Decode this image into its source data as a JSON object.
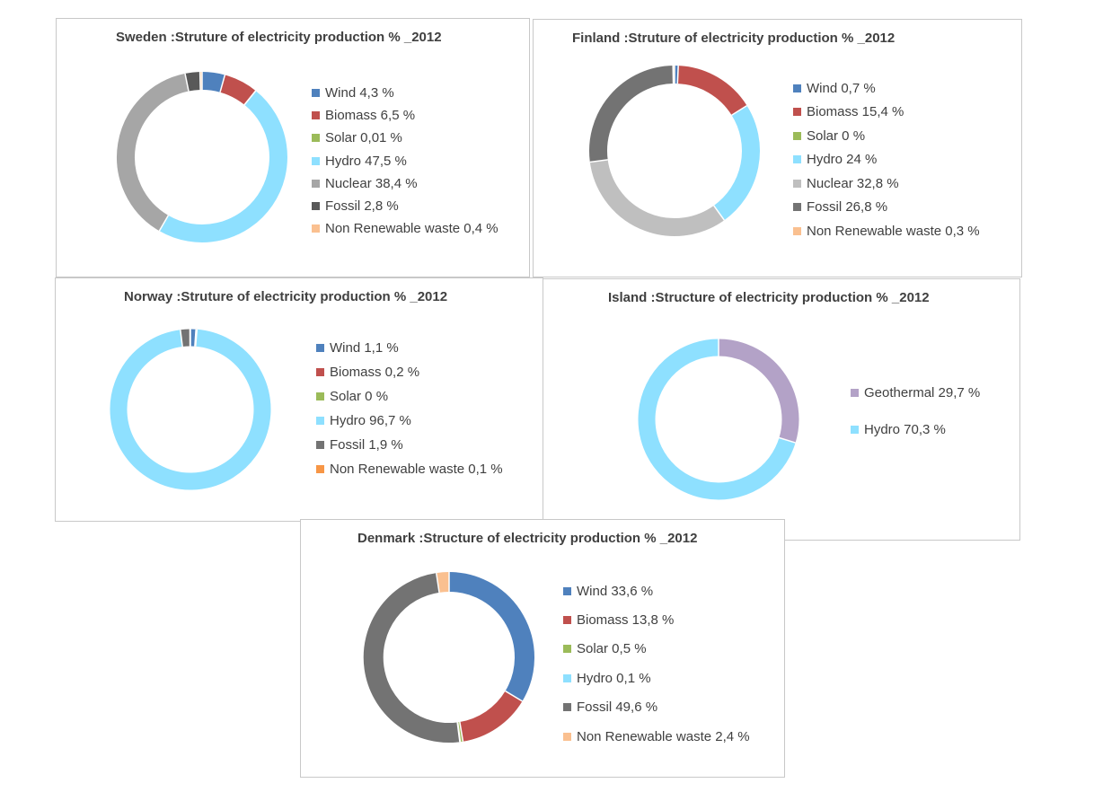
{
  "chart_data": [
    {
      "type": "pie",
      "variant": "donut",
      "title": "Sweden :Struture of electricity production % _2012",
      "categories": [
        "Wind",
        "Biomass",
        "Solar",
        "Hydro",
        "Nuclear",
        "Fossil",
        "Non Renewable waste"
      ],
      "values": [
        4.3,
        6.5,
        0.01,
        47.5,
        38.4,
        2.8,
        0.4
      ],
      "legend": [
        "Wind 4,3 %",
        "Biomass 6,5 %",
        "Solar 0,01 %",
        "Hydro 47,5 %",
        "Nuclear 38,4 %",
        "Fossil 2,8 %",
        "Non Renewable waste 0,4 %"
      ],
      "colors": [
        "#4f81bd",
        "#c0504d",
        "#9bbb59",
        "#8ee0ff",
        "#a6a6a6",
        "#595959",
        "#fac090"
      ],
      "legend_position": "right"
    },
    {
      "type": "pie",
      "variant": "donut",
      "title": "Finland :Struture of electricity production % _2012",
      "categories": [
        "Wind",
        "Biomass",
        "Solar",
        "Hydro",
        "Nuclear",
        "Fossil",
        "Non Renewable waste"
      ],
      "values": [
        0.7,
        15.4,
        0,
        24,
        32.8,
        26.8,
        0.3
      ],
      "legend": [
        "Wind 0,7 %",
        "Biomass 15,4 %",
        "Solar 0 %",
        "Hydro 24 %",
        "Nuclear 32,8 %",
        "Fossil 26,8 %",
        "Non Renewable waste 0,3 %"
      ],
      "colors": [
        "#4f81bd",
        "#c0504d",
        "#9bbb59",
        "#8ee0ff",
        "#bfbfbf",
        "#737373",
        "#fac090"
      ],
      "legend_position": "right"
    },
    {
      "type": "pie",
      "variant": "donut",
      "title": "Norway :Struture of electricity production % _2012",
      "categories": [
        "Wind",
        "Biomass",
        "Solar",
        "Hydro",
        "Fossil",
        "Non Renewable waste"
      ],
      "values": [
        1.1,
        0.2,
        0,
        96.7,
        1.9,
        0.1
      ],
      "legend": [
        "Wind 1,1 %",
        "Biomass 0,2 %",
        "Solar 0 %",
        "Hydro 96,7 %",
        "Fossil 1,9 %",
        "Non Renewable waste 0,1 %"
      ],
      "colors": [
        "#4f81bd",
        "#c0504d",
        "#9bbb59",
        "#8ee0ff",
        "#737373",
        "#f79646"
      ],
      "legend_position": "right"
    },
    {
      "type": "pie",
      "variant": "donut",
      "title": "Island :Structure of electricity production % _2012",
      "categories": [
        "Geothermal",
        "Hydro"
      ],
      "values": [
        29.7,
        70.3
      ],
      "legend": [
        "Geothermal 29,7 %",
        "Hydro 70,3 %"
      ],
      "colors": [
        "#b3a2c7",
        "#8ee0ff"
      ],
      "legend_position": "right"
    },
    {
      "type": "pie",
      "variant": "donut",
      "title": "Denmark :Structure of electricity production % _2012",
      "categories": [
        "Wind",
        "Biomass",
        "Solar",
        "Hydro",
        "Fossil",
        "Non Renewable waste"
      ],
      "values": [
        33.6,
        13.8,
        0.5,
        0.1,
        49.6,
        2.4
      ],
      "legend": [
        "Wind 33,6 %",
        "Biomass 13,8 %",
        "Solar 0,5 %",
        "Hydro 0,1 %",
        "Fossil 49,6 %",
        "Non Renewable waste 2,4 %"
      ],
      "colors": [
        "#4f81bd",
        "#c0504d",
        "#9bbb59",
        "#8ee0ff",
        "#737373",
        "#fac090"
      ],
      "legend_position": "right"
    }
  ]
}
